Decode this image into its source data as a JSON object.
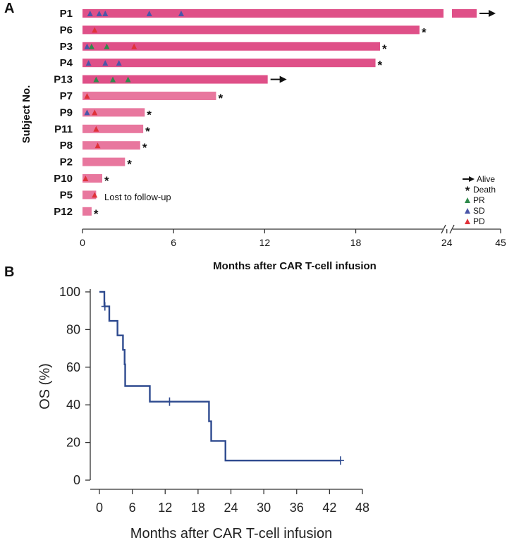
{
  "colors": {
    "bar_dark": "#df5088",
    "bar_light": "#e8779e",
    "pr": "#2f8a4c",
    "sd": "#4a56a8",
    "pd": "#e0323a",
    "km_line": "#2e4a8f",
    "axis": "#333333"
  },
  "chart_data": [
    {
      "type": "bar",
      "orientation": "horizontal",
      "panel_label": "A",
      "xlabel": "Months after CAR T-cell infusion",
      "ylabel": "Subject No.",
      "x_ticks": [
        "0",
        "6",
        "12",
        "18",
        "24",
        "45"
      ],
      "x_break": {
        "after": 24,
        "resume": 45
      },
      "subjects": [
        {
          "label": "P1",
          "months": 44,
          "outcome": "alive",
          "events": [
            {
              "type": "SD",
              "m": 0.5
            },
            {
              "type": "SD",
              "m": 1.1
            },
            {
              "type": "SD",
              "m": 1.5
            },
            {
              "type": "SD",
              "m": 4.4
            },
            {
              "type": "SD",
              "m": 6.5
            }
          ]
        },
        {
          "label": "P6",
          "months": 22.2,
          "outcome": "death",
          "events": [
            {
              "type": "PD",
              "m": 0.8
            }
          ]
        },
        {
          "label": "P3",
          "months": 19.6,
          "outcome": "death",
          "events": [
            {
              "type": "SD",
              "m": 0.3
            },
            {
              "type": "PR",
              "m": 0.6
            },
            {
              "type": "PR",
              "m": 1.6
            },
            {
              "type": "PD",
              "m": 3.4
            }
          ]
        },
        {
          "label": "P4",
          "months": 19.3,
          "outcome": "death",
          "events": [
            {
              "type": "SD",
              "m": 0.4
            },
            {
              "type": "SD",
              "m": 1.5
            },
            {
              "type": "SD",
              "m": 2.4
            }
          ]
        },
        {
          "label": "P13",
          "months": 12.2,
          "outcome": "alive",
          "events": [
            {
              "type": "PR",
              "m": 0.9
            },
            {
              "type": "PR",
              "m": 2.0
            },
            {
              "type": "PR",
              "m": 3.0
            }
          ]
        },
        {
          "label": "P7",
          "months": 8.8,
          "outcome": "death",
          "events": [
            {
              "type": "PD",
              "m": 0.3
            }
          ]
        },
        {
          "label": "P9",
          "months": 4.1,
          "outcome": "death",
          "events": [
            {
              "type": "SD",
              "m": 0.3
            },
            {
              "type": "PD",
              "m": 0.8
            }
          ]
        },
        {
          "label": "P11",
          "months": 4.0,
          "outcome": "death",
          "events": [
            {
              "type": "PD",
              "m": 0.9
            }
          ]
        },
        {
          "label": "P8",
          "months": 3.8,
          "outcome": "death",
          "events": [
            {
              "type": "PD",
              "m": 1.0
            }
          ]
        },
        {
          "label": "P2",
          "months": 2.8,
          "outcome": "death",
          "events": []
        },
        {
          "label": "P10",
          "months": 1.3,
          "outcome": "death",
          "events": [
            {
              "type": "PD",
              "m": 0.2
            }
          ]
        },
        {
          "label": "P5",
          "months": 0.9,
          "outcome": "lost",
          "events": [
            {
              "type": "PD",
              "m": 0.8
            }
          ]
        },
        {
          "label": "P12",
          "months": 0.6,
          "outcome": "death",
          "events": []
        }
      ],
      "annotation": "Lost to follow-up",
      "death_symbol": "*",
      "legend": [
        {
          "key": "alive",
          "label": "Alive"
        },
        {
          "key": "death",
          "label": "Death"
        },
        {
          "key": "PR",
          "label": "PR"
        },
        {
          "key": "SD",
          "label": "SD"
        },
        {
          "key": "PD",
          "label": "PD"
        }
      ]
    },
    {
      "type": "line",
      "subtype": "kaplan-meier",
      "panel_label": "B",
      "xlabel": "Months after CAR T-cell infusion",
      "ylabel": "OS (%)",
      "xlim": [
        0,
        48
      ],
      "ylim": [
        0,
        100
      ],
      "x_ticks": [
        0,
        6,
        12,
        18,
        24,
        30,
        36,
        42,
        48
      ],
      "y_ticks": [
        0,
        20,
        40,
        60,
        80,
        100
      ],
      "steps": [
        [
          0,
          100
        ],
        [
          0.9,
          92.3
        ],
        [
          1.8,
          84.6
        ],
        [
          3.3,
          76.9
        ],
        [
          4.3,
          69.2
        ],
        [
          4.6,
          61.5
        ],
        [
          4.7,
          50.0
        ],
        [
          9.2,
          41.7
        ],
        [
          20.0,
          31.25
        ],
        [
          20.4,
          20.8
        ],
        [
          23.0,
          10.4
        ],
        [
          44.0,
          10.4
        ]
      ],
      "censored": [
        [
          1.0,
          92.3
        ],
        [
          12.8,
          41.7
        ],
        [
          44.0,
          10.4
        ]
      ]
    }
  ]
}
